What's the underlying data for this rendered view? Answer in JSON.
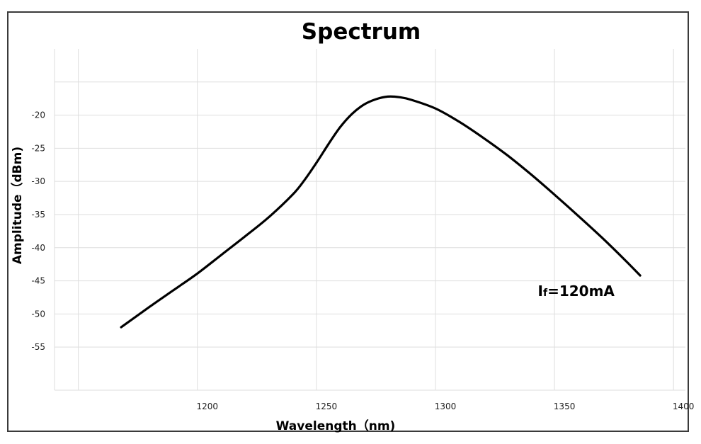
{
  "chart_data": {
    "type": "line",
    "title": "Spectrum",
    "xlabel": "Wavelength（nm)",
    "ylabel": "Amplitude（dBm)",
    "xlim": [
      1140,
      1405
    ],
    "ylim": [
      -61.5,
      -10
    ],
    "x_ticks": [
      1200,
      1250,
      1300,
      1350,
      1400
    ],
    "y_ticks": [
      -20,
      -25,
      -30,
      -35,
      -40,
      -45,
      -50,
      -55
    ],
    "x_grid_lines": [
      1150,
      1200,
      1250,
      1300,
      1350,
      1400
    ],
    "y_grid_lines": [
      -15,
      -20,
      -25,
      -30,
      -35,
      -40,
      -45,
      -50,
      -55
    ],
    "grid": true,
    "series": [
      {
        "x": [
          1168,
          1180,
          1190,
          1200,
          1210,
          1220,
          1230,
          1240,
          1245,
          1250,
          1255,
          1260,
          1265,
          1270,
          1275,
          1280,
          1285,
          1290,
          1300,
          1310,
          1320,
          1330,
          1340,
          1350,
          1360,
          1370,
          1380,
          1386
        ],
        "y": [
          -52,
          -48.9,
          -46.4,
          -43.9,
          -41.1,
          -38.3,
          -35.4,
          -32.0,
          -29.8,
          -27.2,
          -24.4,
          -21.8,
          -19.8,
          -18.4,
          -17.6,
          -17.2,
          -17.3,
          -17.7,
          -19.0,
          -21.0,
          -23.4,
          -26.0,
          -28.9,
          -32.0,
          -35.2,
          -38.5,
          -42.0,
          -44.2
        ]
      }
    ],
    "annotation": {
      "label_main": "I",
      "label_sub": "f",
      "label_value": "=120mA",
      "x": 1343,
      "y": -47.3
    }
  }
}
